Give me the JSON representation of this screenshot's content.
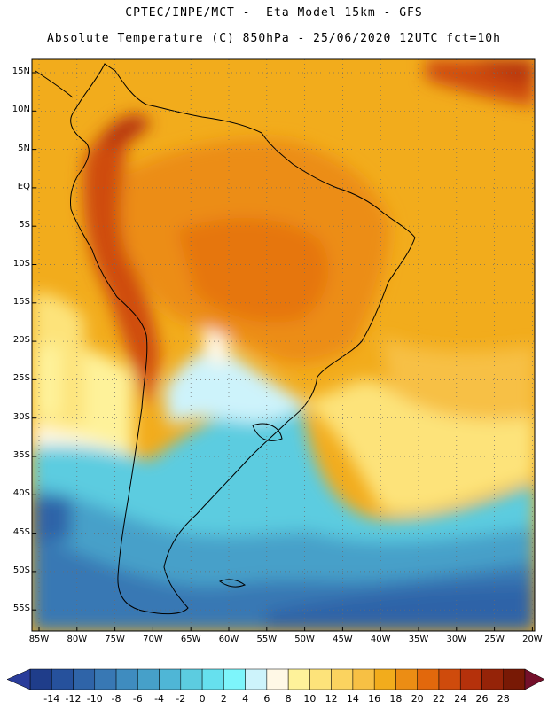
{
  "header": {
    "line1": "CPTEC/INPE/MCT -  Eta Model 15km - GFS",
    "line2": "Absolute Temperature (C) 850hPa - 25/06/2020 12UTC fct=10h"
  },
  "map": {
    "lat_labels": [
      "15N",
      "10N",
      "5N",
      "EQ",
      "5S",
      "10S",
      "15S",
      "20S",
      "25S",
      "30S",
      "35S",
      "40S",
      "45S",
      "50S",
      "55S"
    ],
    "lon_labels": [
      "85W",
      "80W",
      "75W",
      "70W",
      "65W",
      "60W",
      "55W",
      "50W",
      "45W",
      "40W",
      "35W",
      "30W",
      "25W",
      "20W"
    ],
    "grid": "dotted",
    "land_outline_color": "#000000"
  },
  "colorbar": {
    "labels": [
      "-14",
      "-12",
      "-10",
      "-8",
      "-6",
      "-4",
      "-2",
      "0",
      "2",
      "4",
      "6",
      "8",
      "10",
      "12",
      "14",
      "16",
      "18",
      "20",
      "22",
      "24",
      "26",
      "28"
    ],
    "colors": [
      "#1f3d8a",
      "#26519c",
      "#2f64a8",
      "#3878b4",
      "#3f8cbf",
      "#46a0c9",
      "#4fb6d6",
      "#5ccce0",
      "#66e0ee",
      "#7df5fb",
      "#cdf3fb",
      "#fff8e6",
      "#fef29a",
      "#fde37a",
      "#fbd35f",
      "#f7c044",
      "#f2ac1c",
      "#ec8d14",
      "#e2680c",
      "#cf4b0c",
      "#b5310b",
      "#952308",
      "#781905"
    ],
    "under_color": "#2a3c9a",
    "over_color": "#74102a"
  }
}
